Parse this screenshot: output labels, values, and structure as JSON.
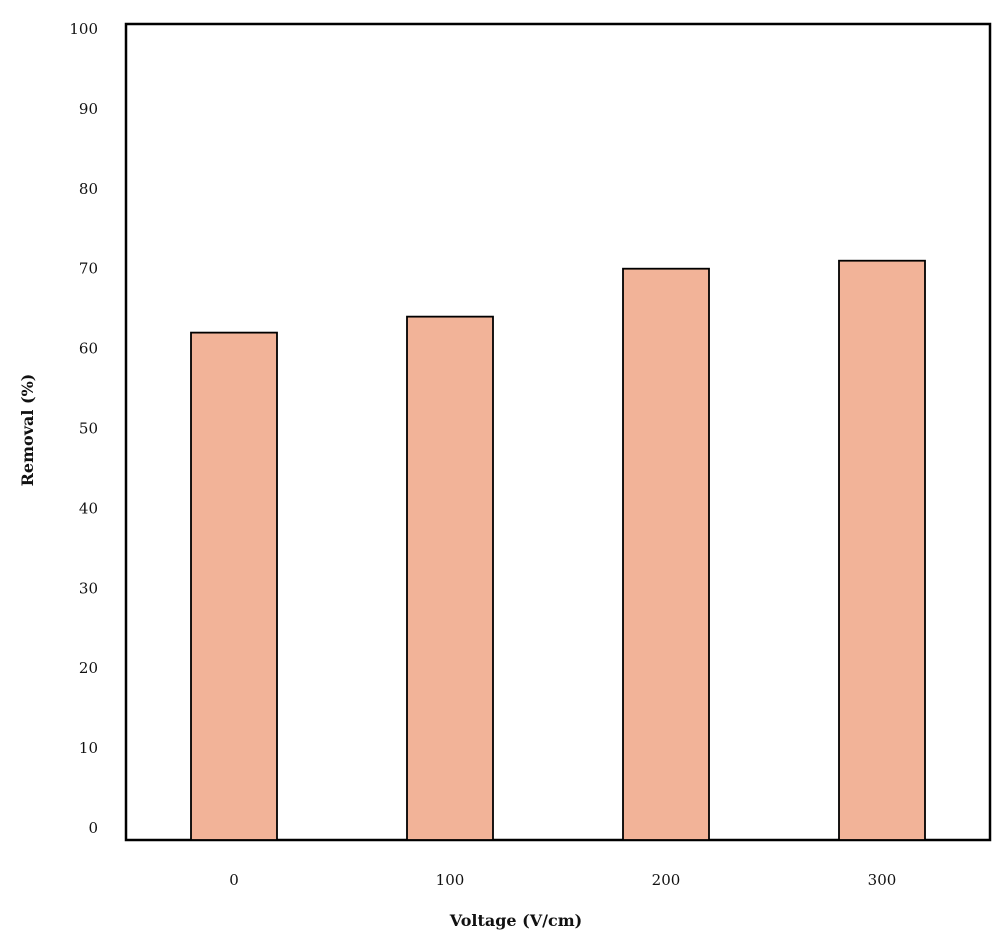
{
  "chart_data": {
    "type": "bar",
    "title": "",
    "xlabel": "Voltage (V/cm)",
    "ylabel": "Removal (%)",
    "categories": [
      "0",
      "100",
      "200",
      "300"
    ],
    "values": [
      62,
      64,
      70,
      71
    ],
    "ylim": [
      0,
      100
    ],
    "yticks": [
      "0",
      "10",
      "20",
      "30",
      "40",
      "50",
      "60",
      "70",
      "80",
      "90",
      "100"
    ],
    "grid": false,
    "legend": "none",
    "colors": {
      "bar_fill": "#F2B398",
      "bar_stroke": "#000000",
      "axis": "#000000",
      "text": "#111111"
    }
  }
}
